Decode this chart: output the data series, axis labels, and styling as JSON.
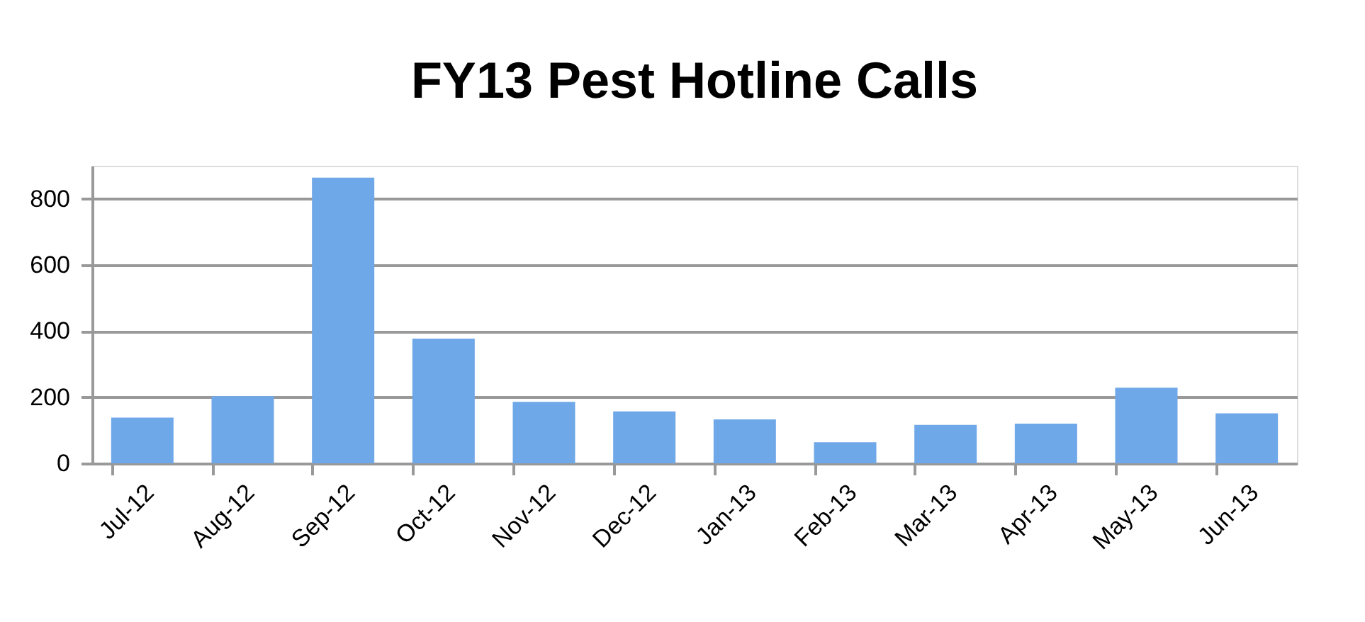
{
  "chart_data": {
    "type": "bar",
    "title": "FY13 Pest Hotline Calls",
    "categories": [
      "Jul-12",
      "Aug-12",
      "Sep-12",
      "Oct-12",
      "Nov-12",
      "Dec-12",
      "Jan-13",
      "Feb-13",
      "Mar-13",
      "Apr-13",
      "May-13",
      "Jun-13"
    ],
    "values": [
      138,
      203,
      864,
      377,
      186,
      157,
      133,
      64,
      116,
      120,
      229,
      151
    ],
    "color": "#6fa8e8",
    "ylim": [
      0,
      900
    ],
    "yticks": [
      0,
      200,
      400,
      600,
      800
    ],
    "grid": "y"
  }
}
